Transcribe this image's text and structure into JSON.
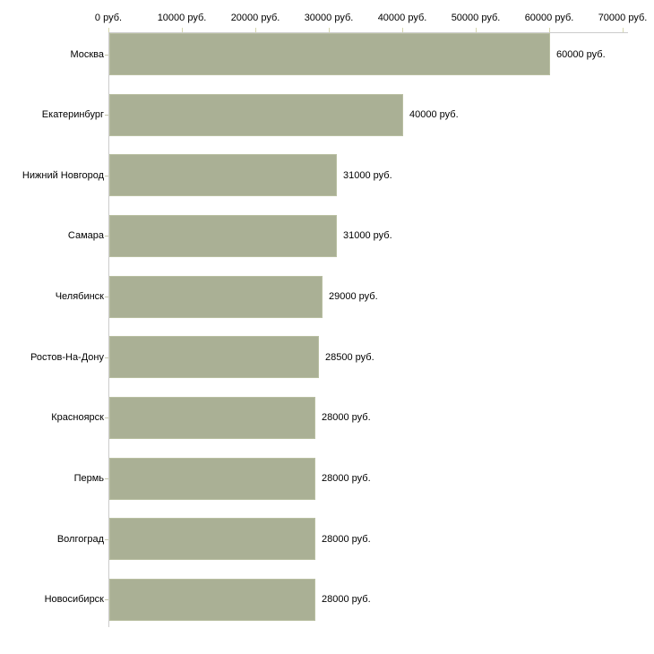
{
  "chart_data": {
    "type": "bar",
    "orientation": "horizontal",
    "unit": "руб.",
    "title": "",
    "xlabel": "",
    "ylabel": "",
    "legend": "none",
    "grid": false,
    "categories": [
      "Москва",
      "Екатеринбург",
      "Нижний Новгород",
      "Самара",
      "Челябинск",
      "Ростов-На-Дону",
      "Красноярск",
      "Пермь",
      "Волгоград",
      "Новосибирск"
    ],
    "values": [
      60000,
      40000,
      31000,
      31000,
      29000,
      28500,
      28000,
      28000,
      28000,
      28000
    ],
    "value_labels": [
      "60000 руб.",
      "40000 руб.",
      "31000 руб.",
      "31000 руб.",
      "29000 руб.",
      "28500 руб.",
      "28000 руб.",
      "28000 руб.",
      "28000 руб.",
      "28000 руб."
    ],
    "x_tick_values": [
      0,
      10000,
      20000,
      30000,
      40000,
      50000,
      60000,
      70000
    ],
    "x_tick_labels": [
      "0 руб.",
      "10000 руб.",
      "20000 руб.",
      "30000 руб.",
      "40000 руб.",
      "50000 руб.",
      "60000 руб.",
      "70000 руб."
    ],
    "xlim": [
      0,
      70000
    ],
    "colors": {
      "bar_fill": "#aab095",
      "bar_border": "#b9bfa2",
      "axis_line": "#cccccc",
      "x_tick_mark": "#d6d7af",
      "y_tick_mark": "#c4c6aa",
      "text": "#000000"
    }
  }
}
